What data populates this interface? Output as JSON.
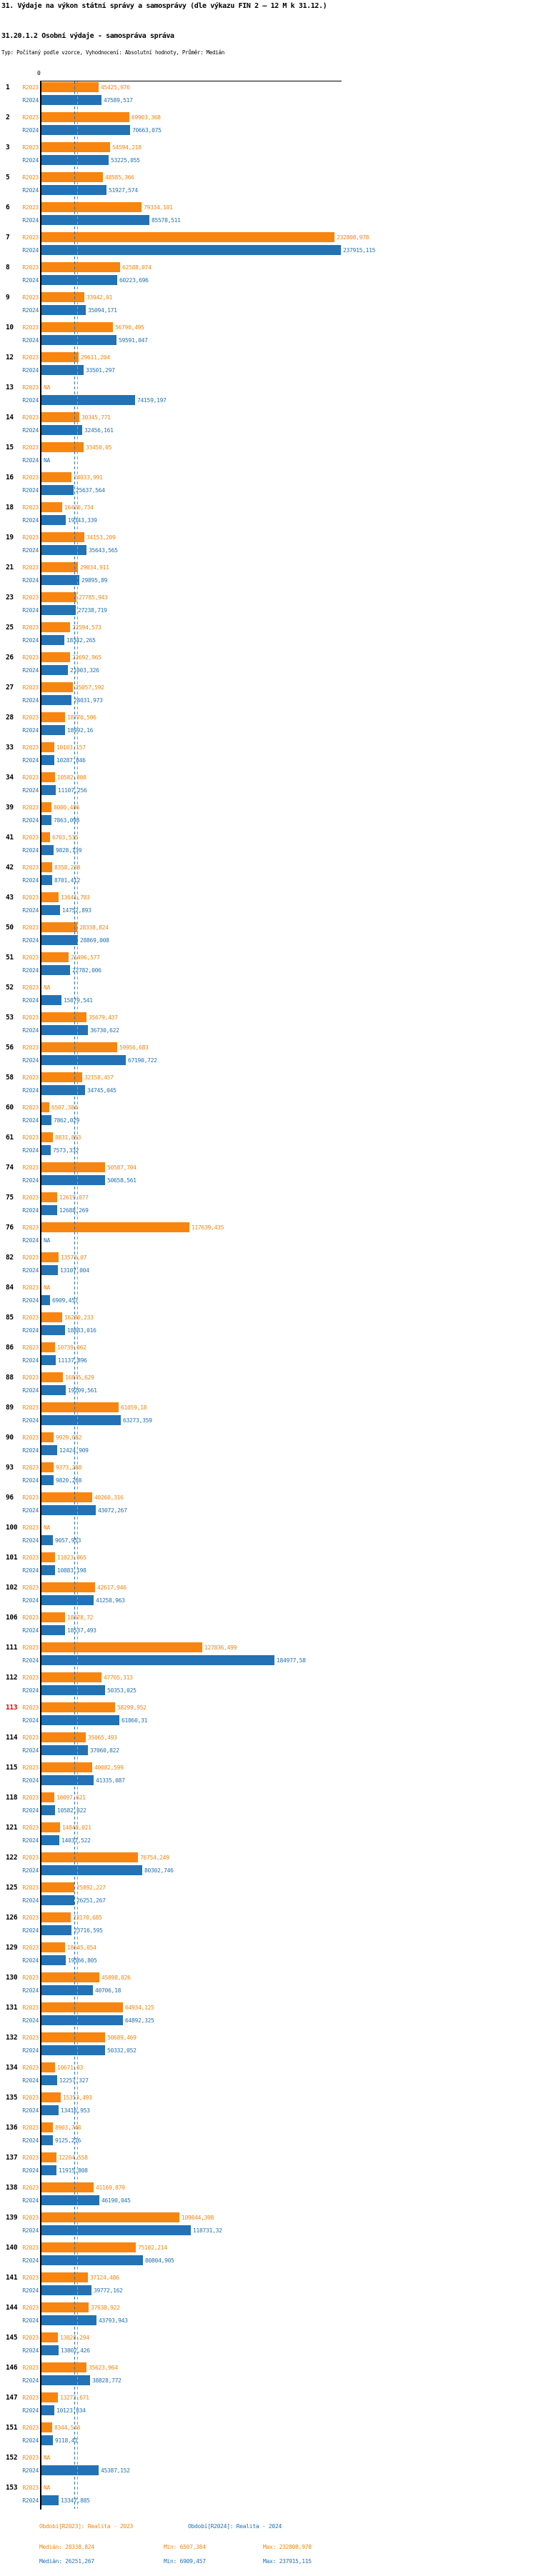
{
  "header": {
    "title": "31. Výdaje na výkon státní správy a samosprávy (dle výkazu FIN 2 – 12 M k 31.12.)",
    "subtitle": "31.20.1.2 Osobní výdaje - samospráva správa",
    "meta": "Typ: Počítaný podle vzorce, Vyhodnocení: Absolutní hodnoty, Průměr: Medián"
  },
  "chart_data": {
    "type": "bar",
    "orientation": "horizontal",
    "axis_zero_label": "0",
    "xlim": [
      0,
      237915.115
    ],
    "grid": false,
    "legend_position": "bottom",
    "series": [
      {
        "name": "R2023",
        "color": "#f8850f",
        "median": 28338.824
      },
      {
        "name": "R2024",
        "color": "#2272b5",
        "median": 26251.267
      }
    ],
    "highlighted_row_id": "113",
    "rows": [
      {
        "id": "1",
        "r2023": "45425,976",
        "r2024": "47589,517"
      },
      {
        "id": "2",
        "r2023": "69903,368",
        "r2024": "70663,075"
      },
      {
        "id": "3",
        "r2023": "54594,218",
        "r2024": "53225,055"
      },
      {
        "id": "5",
        "r2023": "48585,366",
        "r2024": "51927,574"
      },
      {
        "id": "6",
        "r2023": "79334,101",
        "r2024": "85578,511"
      },
      {
        "id": "7",
        "r2023": "232808,978",
        "r2024": "237915,115"
      },
      {
        "id": "8",
        "r2023": "62588,074",
        "r2024": "60223,696"
      },
      {
        "id": "9",
        "r2023": "33942,01",
        "r2024": "35094,171"
      },
      {
        "id": "10",
        "r2023": "56790,495",
        "r2024": "59591,047"
      },
      {
        "id": "12",
        "r2023": "29611,204",
        "r2024": "33501,297"
      },
      {
        "id": "13",
        "r2023": "NA",
        "r2024": "74159,197"
      },
      {
        "id": "14",
        "r2023": "30345,771",
        "r2024": "32456,161"
      },
      {
        "id": "15",
        "r2023": "33450,05",
        "r2024": "NA"
      },
      {
        "id": "16",
        "r2023": "24033,991",
        "r2024": "25637,564"
      },
      {
        "id": "18",
        "r2023": "16420,734",
        "r2024": "19343,339"
      },
      {
        "id": "19",
        "r2023": "34153,209",
        "r2024": "35643,565"
      },
      {
        "id": "21",
        "r2023": "29034,911",
        "r2024": "29895,89"
      },
      {
        "id": "23",
        "r2023": "27785,943",
        "r2024": "27238,719"
      },
      {
        "id": "25",
        "r2023": "22594,573",
        "r2024": "18342,265"
      },
      {
        "id": "26",
        "r2023": "22692,965",
        "r2024": "21003,326"
      },
      {
        "id": "27",
        "r2023": "25057,592",
        "r2024": "24031,973"
      },
      {
        "id": "28",
        "r2023": "18770,506",
        "r2024": "18992,16"
      },
      {
        "id": "33",
        "r2023": "10103,157",
        "r2024": "10287,846"
      },
      {
        "id": "34",
        "r2023": "10582,808",
        "r2024": "11107,256"
      },
      {
        "id": "39",
        "r2023": "8000,486",
        "r2024": "7863,098"
      },
      {
        "id": "41",
        "r2023": "6703,535",
        "r2024": "9828,139"
      },
      {
        "id": "42",
        "r2023": "8358,238",
        "r2024": "8701,412"
      },
      {
        "id": "43",
        "r2023": "13641,783",
        "r2024": "14752,893"
      },
      {
        "id": "50",
        "r2023": "28338,824",
        "r2024": "28869,008"
      },
      {
        "id": "51",
        "r2023": "21496,577",
        "r2024": "22782,006"
      },
      {
        "id": "52",
        "r2023": "NA",
        "r2024": "15879,541"
      },
      {
        "id": "53",
        "r2023": "35679,437",
        "r2024": "36730,622"
      },
      {
        "id": "56",
        "r2023": "59956,683",
        "r2024": "67190,722"
      },
      {
        "id": "58",
        "r2023": "32158,457",
        "r2024": "34745,045"
      },
      {
        "id": "60",
        "r2023": "6507,384",
        "r2024": "7862,029"
      },
      {
        "id": "61",
        "r2023": "8831,853",
        "r2024": "7573,332"
      },
      {
        "id": "74",
        "r2023": "50587,704",
        "r2024": "50658,561"
      },
      {
        "id": "75",
        "r2023": "12619,077",
        "r2024": "12688,269"
      },
      {
        "id": "76",
        "r2023": "117639,435",
        "r2024": "NA"
      },
      {
        "id": "82",
        "r2023": "13573,07",
        "r2024": "13107,004"
      },
      {
        "id": "84",
        "r2023": "NA",
        "r2024": "6909,457"
      },
      {
        "id": "85",
        "r2023": "16280,233",
        "r2024": "18883,016"
      },
      {
        "id": "86",
        "r2023": "10739,062",
        "r2024": "11137,896"
      },
      {
        "id": "88",
        "r2023": "16875,629",
        "r2024": "19209,561"
      },
      {
        "id": "89",
        "r2023": "61059,18",
        "r2024": "63273,359"
      },
      {
        "id": "90",
        "r2023": "9929,082",
        "r2024": "12424,909"
      },
      {
        "id": "93",
        "r2023": "9373,288",
        "r2024": "9820,268"
      },
      {
        "id": "96",
        "r2023": "40260,316",
        "r2024": "43072,267"
      },
      {
        "id": "100",
        "r2023": "NA",
        "r2024": "9057,953"
      },
      {
        "id": "101",
        "r2023": "11023,965",
        "r2024": "10883,198"
      },
      {
        "id": "102",
        "r2023": "42617,946",
        "r2024": "41258,963"
      },
      {
        "id": "106",
        "r2023": "18878,72",
        "r2024": "18537,493"
      },
      {
        "id": "111",
        "r2023": "127836,499",
        "r2024": "184977,58"
      },
      {
        "id": "112",
        "r2023": "47705,313",
        "r2024": "50353,025"
      },
      {
        "id": "113",
        "r2023": "58299,952",
        "r2024": "61860,31"
      },
      {
        "id": "114",
        "r2023": "35065,493",
        "r2024": "37060,822"
      },
      {
        "id": "115",
        "r2023": "40082,599",
        "r2024": "41335,087"
      },
      {
        "id": "118",
        "r2023": "10097,621",
        "r2024": "10582,022"
      },
      {
        "id": "121",
        "r2023": "14848,021",
        "r2024": "14037,522"
      },
      {
        "id": "122",
        "r2023": "76754,249",
        "r2024": "80302,746"
      },
      {
        "id": "125",
        "r2023": "25892,227",
        "r2024": "26251,267"
      },
      {
        "id": "126",
        "r2023": "23170,685",
        "r2024": "23716,595"
      },
      {
        "id": "129",
        "r2023": "18645,054",
        "r2024": "19566,805"
      },
      {
        "id": "130",
        "r2023": "45898,826",
        "r2024": "40706,18"
      },
      {
        "id": "131",
        "r2023": "64934,125",
        "r2024": "64892,325"
      },
      {
        "id": "132",
        "r2023": "50689,469",
        "r2024": "50332,052"
      },
      {
        "id": "134",
        "r2023": "10671,03",
        "r2024": "12257,327"
      },
      {
        "id": "135",
        "r2023": "15353,493",
        "r2024": "13416,953"
      },
      {
        "id": "136",
        "r2023": "8903,748",
        "r2024": "9125,216"
      },
      {
        "id": "137",
        "r2023": "12204,558",
        "r2024": "11915,808"
      },
      {
        "id": "138",
        "r2023": "41169,879",
        "r2024": "46190,045"
      },
      {
        "id": "139",
        "r2023": "109844,398",
        "r2024": "118731,32"
      },
      {
        "id": "140",
        "r2023": "75102,214",
        "r2024": "80804,905"
      },
      {
        "id": "141",
        "r2023": "37124,486",
        "r2024": "39772,162"
      },
      {
        "id": "144",
        "r2023": "37638,922",
        "r2024": "43793,943"
      },
      {
        "id": "145",
        "r2023": "13028,294",
        "r2024": "13802,426"
      },
      {
        "id": "146",
        "r2023": "35623,964",
        "r2024": "38828,772"
      },
      {
        "id": "147",
        "r2023": "13273,671",
        "r2024": "10123,034"
      },
      {
        "id": "151",
        "r2023": "8344,543",
        "r2024": "9118,41"
      },
      {
        "id": "152",
        "r2023": "NA",
        "r2024": "45387,152"
      },
      {
        "id": "153",
        "r2023": "NA",
        "r2024": "13347,885"
      }
    ]
  },
  "footer": {
    "legend": [
      {
        "label": "Období[R2023]: Realita - 2023"
      },
      {
        "label": "Období[R2024]: Realita - 2024"
      }
    ],
    "stats": [
      {
        "median": "Medián: 28338,824",
        "min": "Min: 6507,384",
        "max": "Max: 232808,978"
      },
      {
        "median": "Medián: 26251,267",
        "min": "Min: 6909,457",
        "max": "Max: 237915,115"
      }
    ]
  }
}
